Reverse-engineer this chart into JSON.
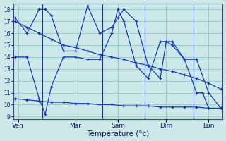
{
  "background_color": "#cce8e8",
  "grid_color": "#99cccc",
  "line_color": "#1133bb",
  "xlabel": "Température (°c)",
  "ylim": [
    8.8,
    18.5
  ],
  "yticks": [
    9,
    10,
    11,
    12,
    13,
    14,
    15,
    16,
    17,
    18
  ],
  "xlim": [
    -0.3,
    34.3
  ],
  "day_positions": [
    0.5,
    10,
    17,
    25,
    32
  ],
  "day_labels": [
    "Ven",
    "Mar",
    "Sam",
    "Dim",
    "Lun"
  ],
  "day_lines": [
    4.5,
    14.5,
    21.5,
    29.5
  ],
  "series": [
    {
      "x": [
        0,
        2,
        4,
        6,
        8,
        10,
        12,
        14,
        16,
        18,
        20,
        22,
        24,
        26,
        28,
        30,
        32,
        34
      ],
      "y": [
        17.0,
        16.5,
        16.0,
        15.5,
        15.0,
        14.8,
        14.5,
        14.2,
        14.0,
        13.8,
        13.5,
        13.3,
        13.0,
        12.8,
        12.5,
        12.2,
        11.8,
        11.3
      ]
    },
    {
      "x": [
        0,
        2,
        4,
        5,
        6,
        8,
        10,
        12,
        14,
        16,
        17,
        18,
        20,
        22,
        24,
        25,
        26,
        28,
        30,
        31,
        32,
        34
      ],
      "y": [
        14.0,
        14.0,
        10.5,
        9.2,
        11.5,
        14.0,
        14.0,
        13.8,
        13.8,
        16.0,
        18.0,
        17.0,
        13.3,
        12.2,
        15.3,
        15.3,
        15.0,
        13.8,
        11.0,
        11.0,
        9.7,
        9.7
      ]
    },
    {
      "x": [
        0,
        2,
        4,
        6,
        8,
        10,
        12,
        14,
        16,
        18,
        20,
        22,
        24,
        26,
        28,
        30,
        32,
        34
      ],
      "y": [
        10.5,
        10.4,
        10.3,
        10.2,
        10.2,
        10.1,
        10.1,
        10.0,
        10.0,
        9.9,
        9.9,
        9.9,
        9.8,
        9.8,
        9.8,
        9.8,
        9.7,
        9.7
      ]
    },
    {
      "x": [
        0,
        2,
        4,
        5,
        6,
        8,
        10,
        12,
        14,
        16,
        17,
        18,
        20,
        22,
        24,
        25,
        26,
        28,
        30,
        32,
        34
      ],
      "y": [
        17.3,
        16.0,
        18.0,
        18.0,
        17.5,
        14.5,
        14.5,
        18.3,
        16.0,
        16.5,
        17.3,
        18.0,
        17.0,
        13.3,
        12.2,
        15.3,
        15.3,
        13.8,
        13.8,
        11.0,
        9.7
      ]
    }
  ]
}
